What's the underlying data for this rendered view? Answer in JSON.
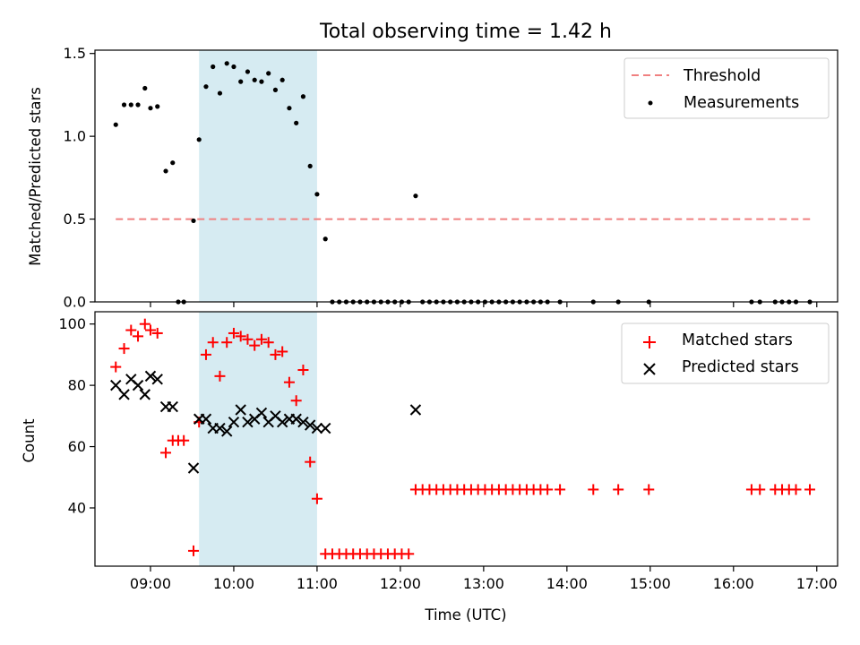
{
  "colors": {
    "threshold": "#f08080",
    "measurements": "#000000",
    "matched": "#ff0000",
    "predicted": "#000000",
    "highlight": "#add8e6"
  },
  "chart_data": [
    {
      "type": "scatter",
      "title": "Total observing time = 1.42 h",
      "ylabel": "Matched/Predicted stars",
      "xlim": [
        "08:20",
        "17:15"
      ],
      "ylim": [
        0,
        1.52
      ],
      "yticks": [
        "0.0",
        "0.5",
        "1.0",
        "1.5"
      ],
      "highlight_span": [
        "09:35",
        "11:00"
      ],
      "legend": {
        "position": "top-right",
        "entries": [
          "Threshold",
          "Measurements"
        ]
      },
      "threshold": {
        "name": "Threshold",
        "value": 0.5,
        "x_range": [
          "08:35",
          "16:57"
        ]
      },
      "measurements": {
        "name": "Measurements",
        "points": [
          [
            "08:35",
            1.07
          ],
          [
            "08:41",
            1.19
          ],
          [
            "08:46",
            1.19
          ],
          [
            "08:51",
            1.19
          ],
          [
            "08:56",
            1.29
          ],
          [
            "09:00",
            1.17
          ],
          [
            "09:05",
            1.18
          ],
          [
            "09:11",
            0.79
          ],
          [
            "09:16",
            0.84
          ],
          [
            "09:20",
            0.0
          ],
          [
            "09:24",
            0.0
          ],
          [
            "09:31",
            0.49
          ],
          [
            "09:35",
            0.98
          ],
          [
            "09:40",
            1.3
          ],
          [
            "09:45",
            1.42
          ],
          [
            "09:50",
            1.26
          ],
          [
            "09:55",
            1.44
          ],
          [
            "10:00",
            1.42
          ],
          [
            "10:05",
            1.33
          ],
          [
            "10:10",
            1.39
          ],
          [
            "10:15",
            1.34
          ],
          [
            "10:20",
            1.33
          ],
          [
            "10:25",
            1.38
          ],
          [
            "10:30",
            1.28
          ],
          [
            "10:35",
            1.34
          ],
          [
            "10:40",
            1.17
          ],
          [
            "10:45",
            1.08
          ],
          [
            "10:50",
            1.24
          ],
          [
            "10:55",
            0.82
          ],
          [
            "11:00",
            0.65
          ],
          [
            "11:06",
            0.38
          ],
          [
            "11:11",
            0.0
          ],
          [
            "11:16",
            0.0
          ],
          [
            "11:21",
            0.0
          ],
          [
            "11:26",
            0.0
          ],
          [
            "11:31",
            0.0
          ],
          [
            "11:36",
            0.0
          ],
          [
            "11:41",
            0.0
          ],
          [
            "11:46",
            0.0
          ],
          [
            "11:51",
            0.0
          ],
          [
            "11:56",
            0.0
          ],
          [
            "12:01",
            0.0
          ],
          [
            "12:06",
            0.0
          ],
          [
            "12:11",
            0.64
          ],
          [
            "12:16",
            0.0
          ],
          [
            "12:21",
            0.0
          ],
          [
            "12:26",
            0.0
          ],
          [
            "12:31",
            0.0
          ],
          [
            "12:36",
            0.0
          ],
          [
            "12:41",
            0.0
          ],
          [
            "12:46",
            0.0
          ],
          [
            "12:51",
            0.0
          ],
          [
            "12:56",
            0.0
          ],
          [
            "13:01",
            0.0
          ],
          [
            "13:06",
            0.0
          ],
          [
            "13:11",
            0.0
          ],
          [
            "13:16",
            0.0
          ],
          [
            "13:21",
            0.0
          ],
          [
            "13:26",
            0.0
          ],
          [
            "13:31",
            0.0
          ],
          [
            "13:36",
            0.0
          ],
          [
            "13:41",
            0.0
          ],
          [
            "13:46",
            0.0
          ],
          [
            "13:55",
            0.0
          ],
          [
            "14:19",
            0.0
          ],
          [
            "14:37",
            0.0
          ],
          [
            "14:59",
            0.0
          ],
          [
            "16:13",
            0.0
          ],
          [
            "16:19",
            0.0
          ],
          [
            "16:30",
            0.0
          ],
          [
            "16:35",
            0.0
          ],
          [
            "16:40",
            0.0
          ],
          [
            "16:45",
            0.0
          ],
          [
            "16:55",
            0.0
          ]
        ]
      }
    },
    {
      "type": "scatter",
      "ylabel": "Count",
      "xlabel": "Time (UTC)",
      "xlim": [
        "08:20",
        "17:15"
      ],
      "ylim": [
        21,
        104
      ],
      "yticks": [
        "40",
        "60",
        "80",
        "100"
      ],
      "xticks": [
        "09:00",
        "10:00",
        "11:00",
        "12:00",
        "13:00",
        "14:00",
        "15:00",
        "16:00",
        "17:00"
      ],
      "highlight_span": [
        "09:35",
        "11:00"
      ],
      "legend": {
        "position": "top-right",
        "entries": [
          "Matched stars",
          "Predicted stars"
        ]
      },
      "series": [
        {
          "name": "Matched stars",
          "marker": "+",
          "points": [
            [
              "08:35",
              86
            ],
            [
              "08:41",
              92
            ],
            [
              "08:46",
              98
            ],
            [
              "08:51",
              96
            ],
            [
              "08:56",
              100
            ],
            [
              "09:00",
              98
            ],
            [
              "09:05",
              97
            ],
            [
              "09:11",
              58
            ],
            [
              "09:16",
              62
            ],
            [
              "09:20",
              62
            ],
            [
              "09:24",
              62
            ],
            [
              "09:31",
              26
            ],
            [
              "09:35",
              68
            ],
            [
              "09:40",
              90
            ],
            [
              "09:45",
              94
            ],
            [
              "09:50",
              83
            ],
            [
              "09:55",
              94
            ],
            [
              "10:00",
              97
            ],
            [
              "10:05",
              96
            ],
            [
              "10:10",
              95
            ],
            [
              "10:15",
              93
            ],
            [
              "10:20",
              95
            ],
            [
              "10:25",
              94
            ],
            [
              "10:30",
              90
            ],
            [
              "10:35",
              91
            ],
            [
              "10:40",
              81
            ],
            [
              "10:45",
              75
            ],
            [
              "10:50",
              85
            ],
            [
              "10:55",
              55
            ],
            [
              "11:00",
              43
            ],
            [
              "11:06",
              25
            ],
            [
              "11:11",
              25
            ],
            [
              "11:16",
              25
            ],
            [
              "11:21",
              25
            ],
            [
              "11:26",
              25
            ],
            [
              "11:31",
              25
            ],
            [
              "11:36",
              25
            ],
            [
              "11:41",
              25
            ],
            [
              "11:46",
              25
            ],
            [
              "11:51",
              25
            ],
            [
              "11:56",
              25
            ],
            [
              "12:01",
              25
            ],
            [
              "12:06",
              25
            ],
            [
              "12:11",
              46
            ],
            [
              "12:16",
              46
            ],
            [
              "12:21",
              46
            ],
            [
              "12:26",
              46
            ],
            [
              "12:31",
              46
            ],
            [
              "12:36",
              46
            ],
            [
              "12:41",
              46
            ],
            [
              "12:46",
              46
            ],
            [
              "12:51",
              46
            ],
            [
              "12:56",
              46
            ],
            [
              "13:01",
              46
            ],
            [
              "13:06",
              46
            ],
            [
              "13:11",
              46
            ],
            [
              "13:16",
              46
            ],
            [
              "13:21",
              46
            ],
            [
              "13:26",
              46
            ],
            [
              "13:31",
              46
            ],
            [
              "13:36",
              46
            ],
            [
              "13:41",
              46
            ],
            [
              "13:46",
              46
            ],
            [
              "13:55",
              46
            ],
            [
              "14:19",
              46
            ],
            [
              "14:37",
              46
            ],
            [
              "14:59",
              46
            ],
            [
              "16:13",
              46
            ],
            [
              "16:19",
              46
            ],
            [
              "16:30",
              46
            ],
            [
              "16:35",
              46
            ],
            [
              "16:40",
              46
            ],
            [
              "16:45",
              46
            ],
            [
              "16:55",
              46
            ]
          ]
        },
        {
          "name": "Predicted stars",
          "marker": "x",
          "points": [
            [
              "08:35",
              80
            ],
            [
              "08:41",
              77
            ],
            [
              "08:46",
              82
            ],
            [
              "08:51",
              80
            ],
            [
              "08:56",
              77
            ],
            [
              "09:00",
              83
            ],
            [
              "09:05",
              82
            ],
            [
              "09:11",
              73
            ],
            [
              "09:16",
              73
            ],
            [
              "09:31",
              53
            ],
            [
              "09:35",
              69
            ],
            [
              "09:40",
              69
            ],
            [
              "09:45",
              66
            ],
            [
              "09:50",
              66
            ],
            [
              "09:55",
              65
            ],
            [
              "10:00",
              68
            ],
            [
              "10:05",
              72
            ],
            [
              "10:10",
              68
            ],
            [
              "10:15",
              69
            ],
            [
              "10:20",
              71
            ],
            [
              "10:25",
              68
            ],
            [
              "10:30",
              70
            ],
            [
              "10:35",
              68
            ],
            [
              "10:40",
              69
            ],
            [
              "10:45",
              69
            ],
            [
              "10:50",
              68
            ],
            [
              "10:55",
              67
            ],
            [
              "11:00",
              66
            ],
            [
              "11:06",
              66
            ],
            [
              "12:11",
              72
            ]
          ]
        }
      ]
    }
  ]
}
